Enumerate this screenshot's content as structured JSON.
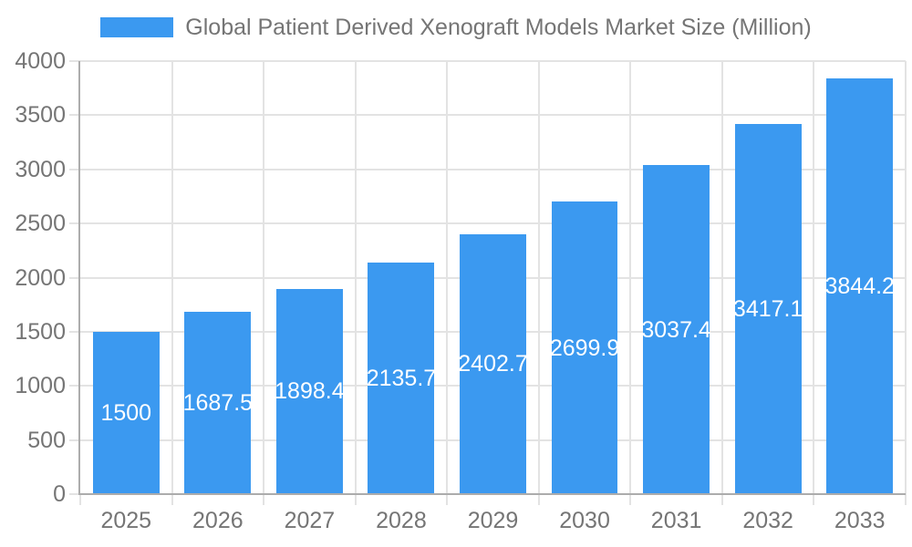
{
  "chart_data": {
    "type": "bar",
    "title": "Global Patient Derived Xenograft Models Market Size (Million)",
    "categories": [
      "2025",
      "2026",
      "2027",
      "2028",
      "2029",
      "2030",
      "2031",
      "2032",
      "2033"
    ],
    "values": [
      1500,
      1687.5,
      1898.4,
      2135.7,
      2402.7,
      2699.9,
      3037.4,
      3417.1,
      3844.2
    ],
    "value_labels": [
      "1500",
      "1687.5",
      "1898.4",
      "2135.7",
      "2402.7",
      "2699.9",
      "3037.4",
      "3417.1",
      "3844.2"
    ],
    "xlabel": "",
    "ylabel": "",
    "ylim": [
      0,
      4000
    ],
    "yticks": [
      0,
      500,
      1000,
      1500,
      2000,
      2500,
      3000,
      3500,
      4000
    ],
    "grid": true,
    "legend_position": "top",
    "bar_label_position": "center"
  },
  "colors": {
    "bar": "#3B99F0",
    "bar_label": "#FFFFFF",
    "axis_text": "#757575",
    "legend_text": "#757575",
    "grid_line": "#E3E3E3",
    "axis_line": "#ACACAC",
    "background": "#FFFFFF"
  }
}
